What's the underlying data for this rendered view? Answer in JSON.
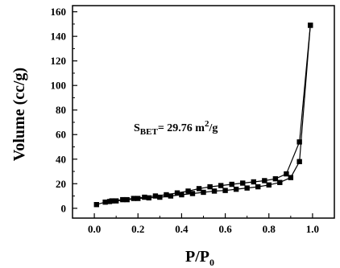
{
  "chart_data": {
    "type": "line",
    "xlabel": "P/P0",
    "ylabel": "Volume (cc/g)",
    "xlim": [
      -0.1,
      1.1
    ],
    "ylim": [
      -8,
      165
    ],
    "x_ticks": [
      "0.0",
      "0.2",
      "0.4",
      "0.6",
      "0.8",
      "1.0"
    ],
    "y_ticks": [
      "0",
      "20",
      "40",
      "60",
      "80",
      "100",
      "120",
      "140",
      "160"
    ],
    "grid": false,
    "annotation": "SBET= 29.76 m2/g",
    "series": [
      {
        "name": "",
        "marker": "square",
        "x": [
          0.01,
          0.05,
          0.07,
          0.1,
          0.15,
          0.2,
          0.25,
          0.3,
          0.35,
          0.4,
          0.45,
          0.5,
          0.55,
          0.6,
          0.65,
          0.7,
          0.75,
          0.8,
          0.85,
          0.9,
          0.94,
          0.99
        ],
        "y": [
          3,
          5,
          5.5,
          6,
          7,
          8,
          8.5,
          9,
          10,
          11,
          12,
          13,
          14,
          14.5,
          15.5,
          16.5,
          17.5,
          19,
          21,
          25,
          38,
          149
        ]
      },
      {
        "name": "",
        "marker": "square",
        "x": [
          0.99,
          0.94,
          0.88,
          0.83,
          0.78,
          0.73,
          0.68,
          0.63,
          0.58,
          0.53,
          0.48,
          0.43,
          0.38,
          0.33,
          0.28,
          0.23,
          0.18,
          0.13,
          0.08
        ],
        "y": [
          149,
          54,
          28,
          24,
          22.5,
          21.5,
          20.5,
          19.5,
          18.5,
          17.5,
          16,
          14,
          12.5,
          11,
          10,
          9,
          8,
          7,
          6
        ]
      }
    ]
  }
}
